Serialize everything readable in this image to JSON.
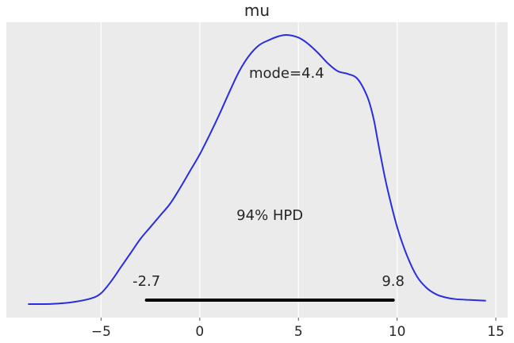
{
  "chart_data": {
    "type": "line",
    "title": "mu",
    "xlabel": "",
    "ylabel": "",
    "xlim": [
      -9.8,
      15.6
    ],
    "x_ticks": [
      -5,
      0,
      5,
      10,
      15
    ],
    "x_tick_labels": [
      "−5",
      "0",
      "5",
      "10",
      "15"
    ],
    "grid": true,
    "series": [
      {
        "x": [
          -8.7,
          -7.5,
          -6.5,
          -5.5,
          -5.0,
          -4.5,
          -4.0,
          -3.5,
          -3.0,
          -2.5,
          -2.0,
          -1.5,
          -1.0,
          -0.5,
          0.0,
          0.5,
          1.0,
          1.5,
          2.0,
          2.5,
          3.0,
          3.5,
          4.0,
          4.4,
          5.0,
          5.5,
          6.0,
          6.5,
          7.0,
          7.5,
          8.0,
          8.5,
          8.8,
          9.0,
          9.2,
          9.5,
          10.0,
          10.5,
          11.0,
          11.5,
          12.0,
          12.5,
          13.0,
          14.0,
          14.5
        ],
        "y": [
          0.003,
          0.004,
          0.01,
          0.025,
          0.045,
          0.09,
          0.145,
          0.2,
          0.255,
          0.3,
          0.345,
          0.39,
          0.45,
          0.515,
          0.58,
          0.655,
          0.735,
          0.82,
          0.9,
          0.96,
          1.0,
          1.02,
          1.035,
          1.04,
          1.03,
          1.005,
          0.97,
          0.93,
          0.9,
          0.89,
          0.87,
          0.8,
          0.72,
          0.64,
          0.56,
          0.45,
          0.3,
          0.19,
          0.11,
          0.065,
          0.04,
          0.028,
          0.022,
          0.018,
          0.016
        ]
      }
    ],
    "annotations": {
      "mode_label": "mode=4.4",
      "hpd_label": "94% HPD",
      "hpd_low": -2.7,
      "hpd_high": 9.8,
      "hpd_low_label": "-2.7",
      "hpd_high_label": "9.8"
    }
  }
}
